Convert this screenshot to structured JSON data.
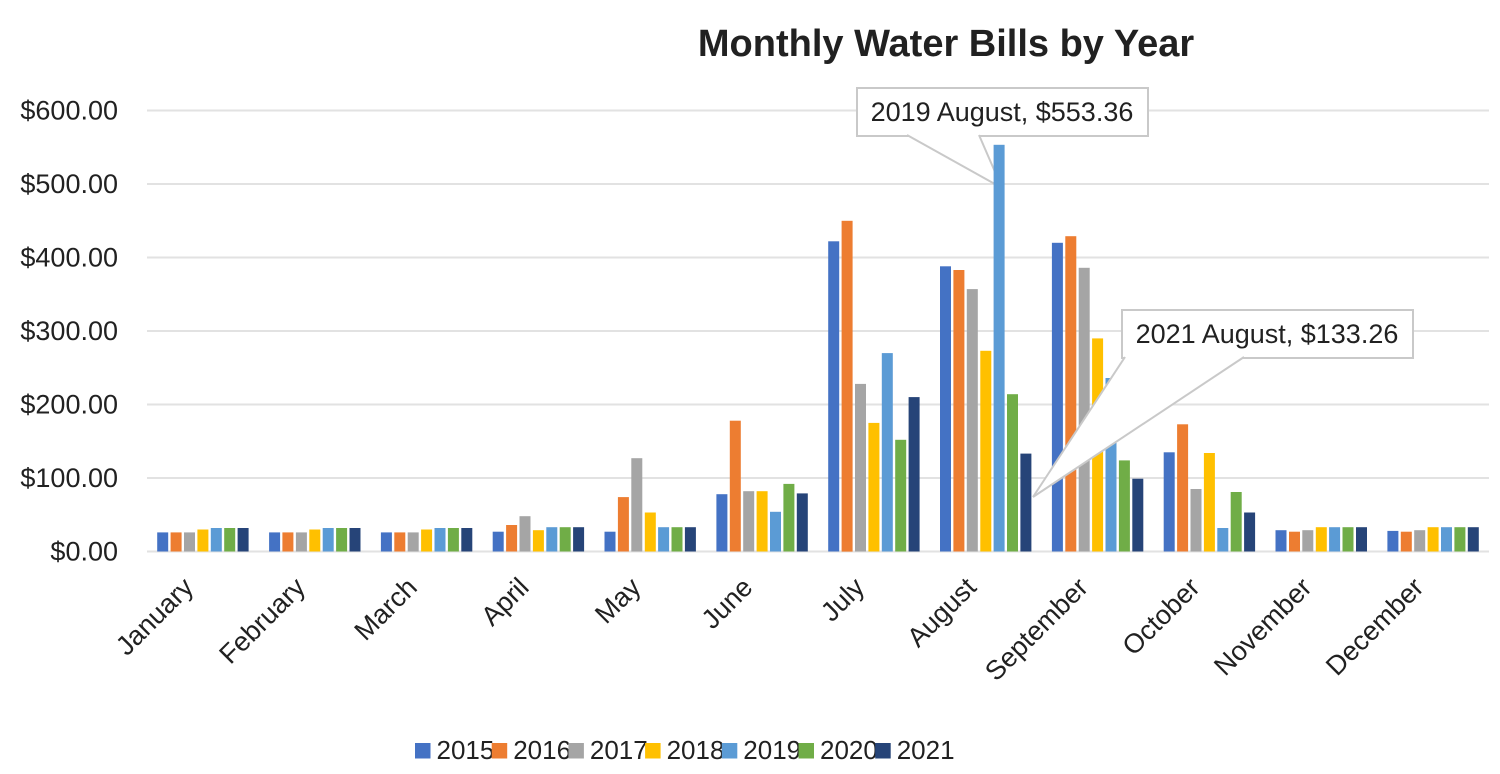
{
  "chart_data": {
    "type": "bar",
    "title": "Monthly Water Bills by Year",
    "categories": [
      "January",
      "February",
      "March",
      "April",
      "May",
      "June",
      "July",
      "August",
      "September",
      "October",
      "November",
      "December"
    ],
    "series": [
      {
        "name": "2015",
        "color": "#4472C4",
        "values": [
          26,
          26,
          26,
          27,
          27,
          78,
          422,
          388,
          420,
          135,
          29,
          28
        ]
      },
      {
        "name": "2016",
        "color": "#ED7D31",
        "values": [
          26,
          26,
          26,
          36,
          74,
          178,
          450,
          383,
          429,
          173,
          27,
          27
        ]
      },
      {
        "name": "2017",
        "color": "#A5A5A5",
        "values": [
          26,
          26,
          26,
          48,
          127,
          82,
          228,
          357,
          386,
          85,
          29,
          29
        ]
      },
      {
        "name": "2018",
        "color": "#FFC000",
        "values": [
          30,
          30,
          30,
          29,
          53,
          82,
          175,
          273,
          290,
          134,
          33,
          33
        ]
      },
      {
        "name": "2019",
        "color": "#5B9BD5",
        "values": [
          32,
          32,
          32,
          33,
          33,
          54,
          270,
          553.36,
          236,
          32,
          33,
          33
        ]
      },
      {
        "name": "2020",
        "color": "#70AD47",
        "values": [
          32,
          32,
          32,
          33,
          33,
          92,
          152,
          214,
          124,
          81,
          33,
          33
        ]
      },
      {
        "name": "2021",
        "color": "#264478",
        "values": [
          32,
          32,
          32,
          33,
          33,
          79,
          210,
          133.26,
          99,
          53,
          33,
          33
        ]
      }
    ],
    "ylim": [
      0,
      600
    ],
    "y_ticks": [
      "$0.00",
      "$100.00",
      "$200.00",
      "$300.00",
      "$400.00",
      "$500.00",
      "$600.00"
    ],
    "xlabel": "",
    "ylabel": "",
    "grid": true,
    "legend_position": "bottom",
    "annotations": [
      {
        "target_series": "2019",
        "target_category": "August",
        "value": 553.36,
        "label": "2019 August, $553.36"
      },
      {
        "target_series": "2021",
        "target_category": "August",
        "value": 133.26,
        "label": "2021 August, $133.26"
      }
    ]
  },
  "colors": {
    "gridline": "#E2E2E2",
    "callout_border": "#C9C9C9",
    "text": "#212121"
  }
}
